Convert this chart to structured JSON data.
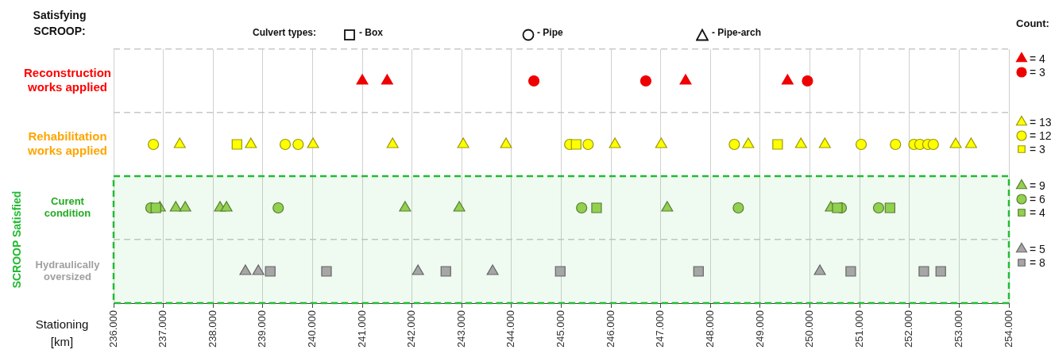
{
  "chart_data": {
    "type": "scatter",
    "orientation": "horizontal",
    "ylabel": "Satisfying SCROOP:",
    "xlabel": "Stationing [km]",
    "legend_title": "Count:",
    "legend": "right",
    "annotations": [
      "Culvert types:",
      "- Box",
      "- Pipe",
      "- Pipe-arch"
    ],
    "bands": [
      {
        "axis": "y",
        "from": "Curent condition",
        "to": "Hydraulically oversized",
        "label": "SCROOP Satisfied",
        "color": "#22bb33"
      }
    ],
    "categories": [
      "Reconstruction works applied",
      "Rehabilitation works applied",
      "Curent condition",
      "Hydraulically oversized"
    ],
    "xlim": [
      236,
      254
    ],
    "xticks": [
      {
        "value": 236,
        "label": "236.000"
      },
      {
        "value": 237,
        "label": "237.000"
      },
      {
        "value": 238,
        "label": "238.000"
      },
      {
        "value": 239,
        "label": "239.000"
      },
      {
        "value": 240,
        "label": "240.000"
      },
      {
        "value": 241,
        "label": "241.000"
      },
      {
        "value": 242,
        "label": "242.000"
      },
      {
        "value": 243,
        "label": "243.000"
      },
      {
        "value": 244,
        "label": "244.000"
      },
      {
        "value": 245,
        "label": "245.000"
      },
      {
        "value": 246,
        "label": "246.000"
      },
      {
        "value": 247,
        "label": "247.000"
      },
      {
        "value": 248,
        "label": "248.000"
      },
      {
        "value": 249,
        "label": "249.000"
      },
      {
        "value": 250,
        "label": "250.000"
      },
      {
        "value": 251,
        "label": "251.000"
      },
      {
        "value": 252,
        "label": "252.000"
      },
      {
        "value": 253,
        "label": "253.000"
      },
      {
        "value": 254,
        "label": "254.000"
      }
    ],
    "grid": true,
    "series": [
      {
        "name": "= 4",
        "color": "#ee0000",
        "marker": "triangle",
        "values": [
          241.0,
          241.5,
          247.5,
          249.55
        ],
        "x": [
          "Reconstruction works applied",
          "Reconstruction works applied",
          "Reconstruction works applied",
          "Reconstruction works applied"
        ]
      },
      {
        "name": "= 3",
        "color": "#ee0000",
        "marker": "circle",
        "values": [
          244.45,
          246.7,
          249.95
        ],
        "x": [
          "Reconstruction works applied",
          "Reconstruction works applied",
          "Reconstruction works applied"
        ]
      },
      {
        "name": "= 13",
        "color": "#ffff00",
        "marker": "triangle",
        "values": [
          237.33,
          238.76,
          240.01,
          241.61,
          243.03,
          243.89,
          246.08,
          247.01,
          248.76,
          249.82,
          250.3,
          252.93,
          253.24
        ],
        "x": [
          "Rehabilitation works applied",
          "Rehabilitation works applied",
          "Rehabilitation works applied",
          "Rehabilitation works applied",
          "Rehabilitation works applied",
          "Rehabilitation works applied",
          "Rehabilitation works applied",
          "Rehabilitation works applied",
          "Rehabilitation works applied",
          "Rehabilitation works applied",
          "Rehabilitation works applied",
          "Rehabilitation works applied",
          "Rehabilitation works applied"
        ]
      },
      {
        "name": "= 12",
        "color": "#ffff00",
        "marker": "circle",
        "values": [
          236.8,
          239.45,
          239.71,
          245.17,
          245.54,
          248.48,
          251.03,
          251.72,
          252.09,
          252.21,
          252.37,
          252.48
        ],
        "x": [
          "Rehabilitation works applied",
          "Rehabilitation works applied",
          "Rehabilitation works applied",
          "Rehabilitation works applied",
          "Rehabilitation works applied",
          "Rehabilitation works applied",
          "Rehabilitation works applied",
          "Rehabilitation works applied",
          "Rehabilitation works applied",
          "Rehabilitation works applied",
          "Rehabilitation works applied",
          "Rehabilitation works applied"
        ]
      },
      {
        "name": "= 3",
        "color": "#ffff00",
        "marker": "square",
        "values": [
          238.48,
          245.3,
          249.35
        ],
        "x": [
          "Rehabilitation works applied",
          "Rehabilitation works applied",
          "Rehabilitation works applied"
        ]
      },
      {
        "name": "= 9",
        "color": "#92d050",
        "marker": "triangle",
        "values": [
          236.93,
          237.25,
          237.44,
          238.14,
          238.27,
          241.86,
          242.95,
          247.13,
          250.42
        ],
        "x": [
          "Curent condition",
          "Curent condition",
          "Curent condition",
          "Curent condition",
          "Curent condition",
          "Curent condition",
          "Curent condition",
          "Curent condition",
          "Curent condition"
        ]
      },
      {
        "name": "= 6",
        "color": "#92d050",
        "marker": "circle",
        "values": [
          236.75,
          239.31,
          245.41,
          248.56,
          250.63,
          251.38
        ],
        "x": [
          "Curent condition",
          "Curent condition",
          "Curent condition",
          "Curent condition",
          "Curent condition",
          "Curent condition"
        ]
      },
      {
        "name": "= 4",
        "color": "#92d050",
        "marker": "square",
        "values": [
          236.85,
          245.71,
          250.55,
          251.61
        ],
        "x": [
          "Curent condition",
          "Curent condition",
          "Curent condition",
          "Curent condition"
        ]
      },
      {
        "name": "= 5",
        "color": "#a6a6a6",
        "marker": "triangle",
        "values": [
          238.65,
          238.91,
          242.12,
          243.62,
          250.2
        ],
        "x": [
          "Hydraulically oversized",
          "Hydraulically oversized",
          "Hydraulically oversized",
          "Hydraulically oversized",
          "Hydraulically oversized"
        ]
      },
      {
        "name": "= 8",
        "color": "#a6a6a6",
        "marker": "square",
        "values": [
          239.15,
          240.28,
          242.68,
          244.98,
          247.76,
          250.82,
          252.29,
          252.63
        ],
        "x": [
          "Hydraulically oversized",
          "Hydraulically oversized",
          "Hydraulically oversized",
          "Hydraulically oversized",
          "Hydraulically oversized",
          "Hydraulically oversized",
          "Hydraulically oversized",
          "Hydraulically oversized"
        ]
      }
    ]
  }
}
